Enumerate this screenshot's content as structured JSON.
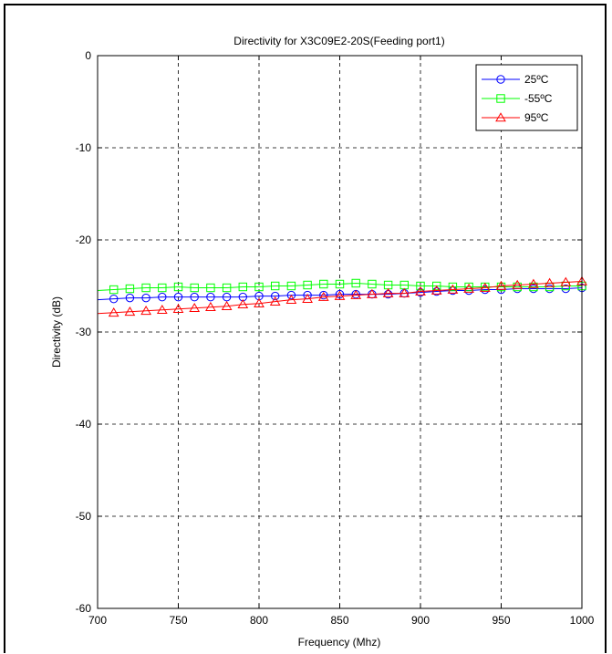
{
  "chart_data": {
    "type": "line",
    "title": "Directivity for X3C09E2-20S(Feeding port1)",
    "xlabel": "Frequency (Mhz)",
    "ylabel": "Directivity (dB)",
    "xlim": [
      700,
      1000
    ],
    "ylim": [
      -60,
      0
    ],
    "xticks": [
      "700",
      "750",
      "800",
      "850",
      "900",
      "950",
      "1000"
    ],
    "yticks": [
      "0",
      "-10",
      "-20",
      "-30",
      "-40",
      "-50",
      "-60"
    ],
    "grid": true,
    "legend_position": "top-right",
    "x": [
      710,
      720,
      730,
      740,
      750,
      760,
      770,
      780,
      790,
      800,
      810,
      820,
      830,
      840,
      850,
      860,
      870,
      880,
      890,
      900,
      910,
      920,
      930,
      940,
      950,
      960,
      970,
      980,
      990,
      1000
    ],
    "series": [
      {
        "name": "25ºC",
        "color": "#0000ff",
        "marker": "circle",
        "values": [
          -26.4,
          -26.3,
          -26.3,
          -26.2,
          -26.2,
          -26.2,
          -26.2,
          -26.2,
          -26.2,
          -26.1,
          -26.1,
          -26.0,
          -26.0,
          -26.0,
          -25.9,
          -25.9,
          -25.9,
          -25.9,
          -25.8,
          -25.7,
          -25.6,
          -25.5,
          -25.5,
          -25.4,
          -25.4,
          -25.3,
          -25.3,
          -25.3,
          -25.3,
          -25.2
        ]
      },
      {
        "name": "-55ºC",
        "color": "#00ff00",
        "marker": "square",
        "values": [
          -25.4,
          -25.3,
          -25.2,
          -25.2,
          -25.1,
          -25.2,
          -25.2,
          -25.2,
          -25.1,
          -25.1,
          -25.0,
          -25.0,
          -24.9,
          -24.8,
          -24.8,
          -24.7,
          -24.8,
          -24.9,
          -24.9,
          -25.0,
          -25.0,
          -25.1,
          -25.1,
          -25.1,
          -25.1,
          -25.1,
          -25.1,
          -25.1,
          -25.0,
          -25.0
        ]
      },
      {
        "name": "95ºC",
        "color": "#ff0000",
        "marker": "triangle",
        "values": [
          -27.9,
          -27.8,
          -27.7,
          -27.6,
          -27.5,
          -27.4,
          -27.3,
          -27.2,
          -27.0,
          -26.9,
          -26.7,
          -26.5,
          -26.4,
          -26.2,
          -26.1,
          -26.0,
          -25.9,
          -25.8,
          -25.8,
          -25.6,
          -25.5,
          -25.4,
          -25.3,
          -25.2,
          -25.0,
          -24.9,
          -24.8,
          -24.7,
          -24.6,
          -24.5
        ]
      }
    ]
  }
}
